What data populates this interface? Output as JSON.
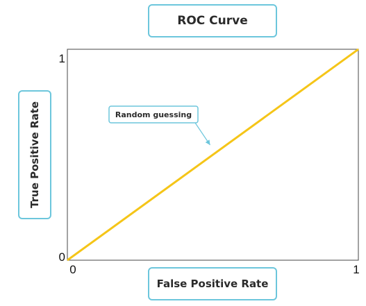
{
  "chart_data": {
    "type": "line",
    "title": "ROC Curve",
    "xlabel": "False Positive Rate",
    "ylabel": "True Positive Rate",
    "xlim": [
      0,
      1
    ],
    "ylim": [
      0,
      1
    ],
    "x_ticks": [
      "0",
      "1"
    ],
    "y_ticks": [
      "0",
      "1"
    ],
    "grid": false,
    "series": [
      {
        "x": [
          0,
          1
        ],
        "y": [
          0,
          1
        ],
        "color": "#f5c518"
      }
    ],
    "annotations": [
      {
        "text": "Random guessing",
        "x": 0.5,
        "y": 0.5
      }
    ]
  },
  "colors": {
    "box_border": "#6cc6dc",
    "axis": "#444444",
    "arrow": "#6cc6dc"
  }
}
